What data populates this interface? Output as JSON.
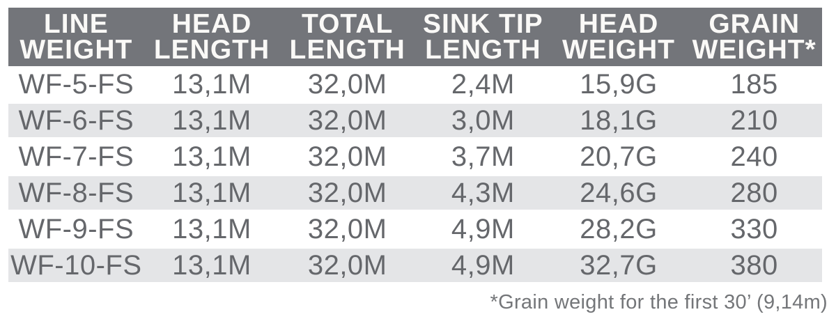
{
  "colors": {
    "page_bg": "#ffffff",
    "header_bg": "#73757a",
    "header_text": "#faf9f7",
    "row_text": "#65676b",
    "alt_row_bg": "#e4e5e7",
    "footnote_text": "#747679"
  },
  "table": {
    "header": [
      {
        "line1": "LINE",
        "line2": "WEIGHT"
      },
      {
        "line1": "HEAD",
        "line2": "LENGTH"
      },
      {
        "line1": "TOTAL",
        "line2": "LENGTH"
      },
      {
        "line1": "SINK TIP",
        "line2": "LENGTH"
      },
      {
        "line1": "HEAD",
        "line2": "WEIGHT"
      },
      {
        "line1": "GRAIN",
        "line2": "WEIGHT*"
      }
    ]
  },
  "chart_data": {
    "type": "table",
    "columns": [
      "LINE WEIGHT",
      "HEAD LENGTH",
      "TOTAL LENGTH",
      "SINK TIP LENGTH",
      "HEAD WEIGHT",
      "GRAIN WEIGHT*"
    ],
    "rows": [
      [
        "WF-5-FS",
        "13,1M",
        "32,0M",
        "2,4M",
        "15,9G",
        "185"
      ],
      [
        "WF-6-FS",
        "13,1M",
        "32,0M",
        "3,0M",
        "18,1G",
        "210"
      ],
      [
        "WF-7-FS",
        "13,1M",
        "32,0M",
        "3,7M",
        "20,7G",
        "240"
      ],
      [
        "WF-8-FS",
        "13,1M",
        "32,0M",
        "4,3M",
        "24,6G",
        "280"
      ],
      [
        "WF-9-FS",
        "13,1M",
        "32,0M",
        "4,9M",
        "28,2G",
        "330"
      ],
      [
        "WF-10-FS",
        "13,1M",
        "32,0M",
        "4,9M",
        "32,7G",
        "380"
      ]
    ],
    "footnote": "*Grain weight for the first 30’ (9,14m)"
  }
}
